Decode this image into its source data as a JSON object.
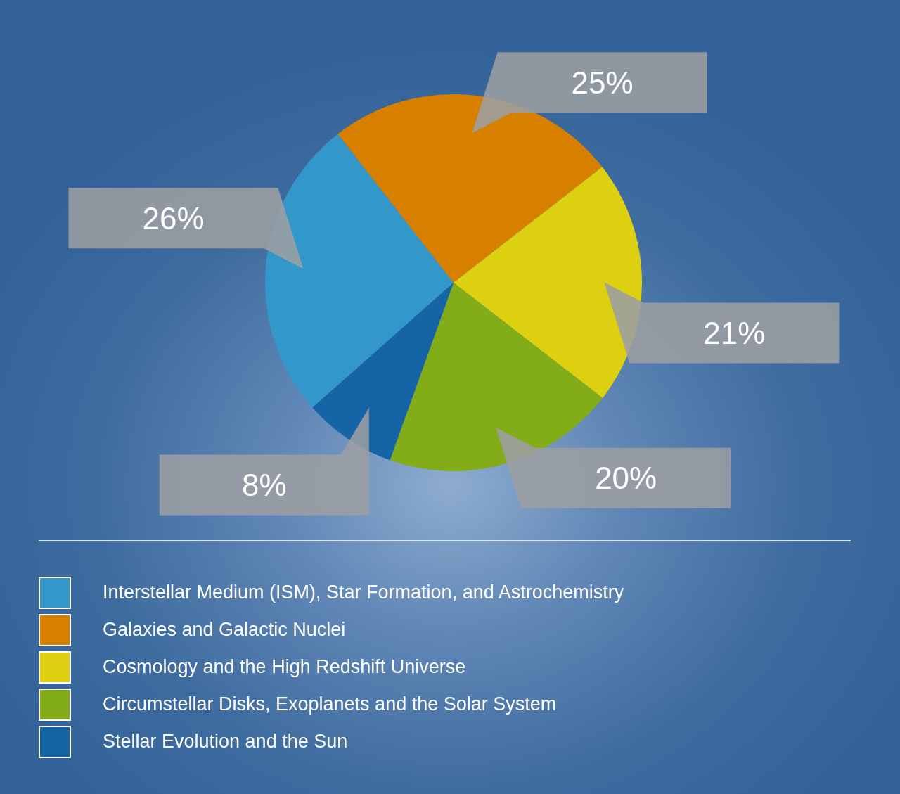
{
  "chart_data": {
    "type": "pie",
    "categories": [
      "Interstellar Medium (ISM), Star Formation, and Astrochemistry",
      "Galaxies and Galactic Nuclei",
      "Cosmology and the High Redshift Universe",
      "Circumstellar Disks, Exoplanets and the Solar System",
      "Stellar Evolution and the Sun"
    ],
    "values": [
      26,
      25,
      21,
      20,
      8
    ],
    "colors": [
      "#3398c9",
      "#d78000",
      "#ddd010",
      "#83ac19",
      "#1564a6"
    ],
    "value_labels": [
      "26%",
      "25%",
      "21%",
      "20%",
      "8%"
    ],
    "legend": "bottom"
  }
}
